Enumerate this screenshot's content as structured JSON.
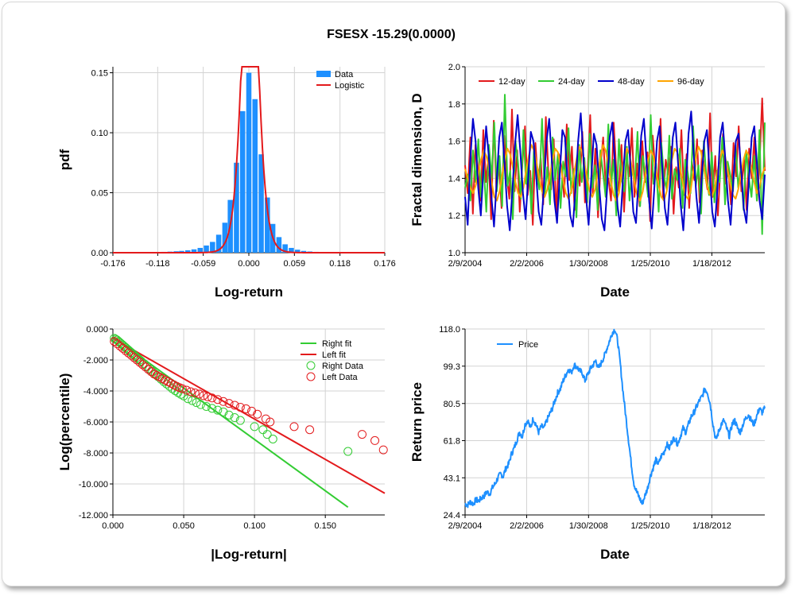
{
  "title": "FSESX -15.29(0.0000)",
  "colors": {
    "blue": "#1e90ff",
    "red": "#e31a1c",
    "green": "#33cc33",
    "navy": "#0000cc",
    "orange": "#ffa500",
    "grid": "#d3d3d3"
  },
  "chart_data": [
    {
      "type": "bar",
      "name": "pdf-histogram",
      "xlabel": "Log-return",
      "ylabel": "pdf",
      "xlim": [
        -0.176,
        0.176
      ],
      "ylim": [
        0,
        0.155
      ],
      "xticks": [
        "-0.176",
        "-0.118",
        "-0.059",
        "0.000",
        "0.059",
        "0.118",
        "0.176"
      ],
      "yticks": [
        "0.00",
        "0.05",
        "0.10",
        "0.15"
      ],
      "legend": [
        "Data",
        "Logistic"
      ],
      "bin_width": 0.0079,
      "bins": [
        -0.166,
        -0.158,
        -0.15,
        -0.142,
        -0.134,
        -0.126,
        -0.118,
        -0.11,
        -0.102,
        -0.094,
        -0.087,
        -0.079,
        -0.071,
        -0.063,
        -0.055,
        -0.047,
        -0.039,
        -0.031,
        -0.024,
        -0.016,
        -0.008,
        0.0,
        0.008,
        0.016,
        0.024,
        0.031,
        0.039,
        0.047,
        0.055,
        0.063,
        0.071,
        0.079,
        0.087,
        0.094,
        0.102,
        0.11,
        0.118,
        0.126,
        0.134,
        0.142,
        0.15
      ],
      "values": [
        0.0003,
        0,
        0.0002,
        0,
        0.0003,
        0.0005,
        0.0004,
        0.0007,
        0.0009,
        0.0012,
        0.0015,
        0.002,
        0.0028,
        0.004,
        0.006,
        0.009,
        0.015,
        0.025,
        0.044,
        0.075,
        0.118,
        0.15,
        0.128,
        0.082,
        0.046,
        0.024,
        0.013,
        0.007,
        0.004,
        0.0025,
        0.0015,
        0.001,
        0.0007,
        0.0005,
        0.0003,
        0.0002,
        0.0002,
        0.0001,
        0,
        0,
        0.0002
      ],
      "fit": {
        "name": "Logistic",
        "mu": 0.0015,
        "s": 0.0065
      }
    },
    {
      "type": "line",
      "name": "fractal-dimension",
      "xlabel": "Date",
      "ylabel": "Fractal dimension, D",
      "xlim": [
        "2004-02-09",
        "2013-10-01"
      ],
      "ylim": [
        1.0,
        2.0
      ],
      "xticks": [
        "2/9/2004",
        "2/2/2006",
        "1/30/2008",
        "1/25/2010",
        "1/18/2012"
      ],
      "yticks": [
        "1.0",
        "1.2",
        "1.4",
        "1.6",
        "1.8",
        "2.0"
      ],
      "series": [
        {
          "name": "12-day",
          "color": "#e31a1c",
          "values": [
            1.47,
            1.32,
            1.62,
            1.21,
            1.58,
            1.45,
            1.28,
            1.66,
            1.38,
            1.52,
            1.18,
            1.71,
            1.35,
            1.49,
            1.24,
            1.63,
            1.41,
            1.29,
            1.77,
            1.33,
            1.55,
            1.22,
            1.48,
            1.68,
            1.31,
            1.44,
            1.15,
            1.59,
            1.37,
            1.51,
            1.26,
            1.73,
            1.42,
            1.34,
            1.61,
            1.2,
            1.53,
            1.46,
            1.3,
            1.69,
            1.39,
            1.57,
            1.23,
            1.5,
            1.36,
            1.65,
            1.27,
            1.43,
            1.74,
            1.32,
            1.56,
            1.19,
            1.47,
            1.62,
            1.35,
            1.4,
            1.28,
            1.7,
            1.45,
            1.33,
            1.58,
            1.22,
            1.52,
            1.41,
            1.67,
            1.3,
            1.48,
            1.25,
            1.6,
            1.38,
            1.54,
            1.17,
            1.63,
            1.44,
            1.36,
            1.72,
            1.29,
            1.5,
            1.42,
            1.57,
            1.21,
            1.46,
            1.35,
            1.66,
            1.31,
            1.53,
            1.24,
            1.49,
            1.39,
            1.61,
            1.27,
            1.55,
            1.43,
            1.34,
            1.75,
            1.3,
            1.52,
            1.2,
            1.47,
            1.64,
            1.37,
            1.45,
            1.26,
            1.59,
            1.41,
            1.68,
            1.33,
            1.51,
            1.23,
            1.56,
            1.4,
            1.62,
            1.28,
            1.48,
            1.83,
            1.44
          ]
        },
        {
          "name": "24-day",
          "color": "#33cc33",
          "values": [
            1.35,
            1.42,
            1.28,
            1.55,
            1.38,
            1.61,
            1.3,
            1.47,
            1.22,
            1.58,
            1.4,
            1.7,
            1.33,
            1.52,
            1.25,
            1.85,
            1.36,
            1.44,
            1.18,
            1.6,
            1.48,
            1.29,
            1.66,
            1.37,
            1.5,
            1.21,
            1.57,
            1.42,
            1.34,
            1.72,
            1.31,
            1.46,
            1.26,
            1.62,
            1.39,
            1.53,
            1.24,
            1.49,
            1.41,
            1.67,
            1.32,
            1.45,
            1.19,
            1.58,
            1.38,
            1.51,
            1.27,
            1.64,
            1.35,
            1.47,
            1.23,
            1.55,
            1.43,
            1.3,
            1.69,
            1.36,
            1.5,
            1.2,
            1.61,
            1.4,
            1.33,
            1.57,
            1.28,
            1.46,
            1.38,
            1.65,
            1.25,
            1.52,
            1.42,
            1.3,
            1.74,
            1.37,
            1.48,
            1.22,
            1.59,
            1.41,
            1.34,
            1.63,
            1.29,
            1.45,
            1.39,
            1.56,
            1.24,
            1.5,
            1.43,
            1.32,
            1.68,
            1.36,
            1.47,
            1.21,
            1.6,
            1.4,
            1.31,
            1.54,
            1.27,
            1.44,
            1.38,
            1.62,
            1.26,
            1.49,
            1.42,
            1.33,
            1.58,
            1.35,
            1.46,
            1.23,
            1.55,
            1.4,
            1.3,
            1.52,
            1.28,
            1.66,
            1.1,
            1.7
          ]
        },
        {
          "name": "48-day",
          "color": "#0000cc",
          "values": [
            1.3,
            1.15,
            1.5,
            1.72,
            1.6,
            1.35,
            1.2,
            1.45,
            1.68,
            1.52,
            1.3,
            1.14,
            1.38,
            1.62,
            1.7,
            1.48,
            1.25,
            1.12,
            1.33,
            1.58,
            1.74,
            1.55,
            1.32,
            1.18,
            1.4,
            1.65,
            1.6,
            1.42,
            1.22,
            1.15,
            1.36,
            1.6,
            1.72,
            1.5,
            1.28,
            1.16,
            1.42,
            1.66,
            1.62,
            1.38,
            1.2,
            1.14,
            1.35,
            1.6,
            1.75,
            1.52,
            1.3,
            1.15,
            1.4,
            1.64,
            1.58,
            1.36,
            1.18,
            1.12,
            1.34,
            1.62,
            1.7,
            1.48,
            1.25,
            1.14,
            1.38,
            1.6,
            1.66,
            1.45,
            1.22,
            1.16,
            1.4,
            1.63,
            1.72,
            1.5,
            1.28,
            1.13,
            1.35,
            1.6,
            1.68,
            1.46,
            1.24,
            1.15,
            1.38,
            1.62,
            1.7,
            1.48,
            1.26,
            1.12,
            1.36,
            1.64,
            1.76,
            1.52,
            1.3,
            1.16,
            1.4,
            1.6,
            1.66,
            1.44,
            1.22,
            1.14,
            1.35,
            1.62,
            1.7,
            1.5,
            1.28,
            1.15,
            1.38,
            1.6,
            1.64,
            1.45,
            1.24,
            1.16,
            1.4,
            1.62,
            1.68,
            1.48,
            1.28,
            1.18,
            1.42
          ]
        },
        {
          "name": "96-day",
          "color": "#ffa500",
          "values": [
            1.45,
            1.4,
            1.35,
            1.32,
            1.36,
            1.42,
            1.5,
            1.55,
            1.52,
            1.46,
            1.38,
            1.3,
            1.28,
            1.33,
            1.42,
            1.5,
            1.56,
            1.53,
            1.46,
            1.38,
            1.32,
            1.3,
            1.35,
            1.44,
            1.52,
            1.58,
            1.55,
            1.48,
            1.4,
            1.33,
            1.3,
            1.34,
            1.42,
            1.5,
            1.56,
            1.54,
            1.47,
            1.39,
            1.32,
            1.29,
            1.33,
            1.42,
            1.5,
            1.57,
            1.55,
            1.48,
            1.4,
            1.33,
            1.3,
            1.34,
            1.43,
            1.51,
            1.58,
            1.55,
            1.47,
            1.38,
            1.31,
            1.28,
            1.32,
            1.42,
            1.5,
            1.56,
            1.53,
            1.45,
            1.37,
            1.3,
            1.28,
            1.33,
            1.42,
            1.5,
            1.55,
            1.52,
            1.44,
            1.36,
            1.3,
            1.28,
            1.33,
            1.42,
            1.5,
            1.56,
            1.54,
            1.46,
            1.38,
            1.31,
            1.29,
            1.33,
            1.43,
            1.51,
            1.57,
            1.54,
            1.46,
            1.38,
            1.32,
            1.3,
            1.34,
            1.42,
            1.5,
            1.55,
            1.52,
            1.44,
            1.37,
            1.31,
            1.29,
            1.34,
            1.42,
            1.5,
            1.55,
            1.52,
            1.45,
            1.38,
            1.32,
            1.35,
            1.42,
            1.46
          ]
        }
      ]
    },
    {
      "type": "scatter",
      "name": "tail-fit",
      "xlabel": "|Log-return|",
      "ylabel": "Log(percentile)",
      "xlim": [
        0,
        0.192
      ],
      "ylim": [
        -12,
        0
      ],
      "xticks": [
        "0.000",
        "0.050",
        "0.100",
        "0.150"
      ],
      "yticks": [
        "0.000",
        "-2.000",
        "-4.000",
        "-6.000",
        "-8.000",
        "-10.000",
        "-12.000"
      ],
      "legend": [
        "Right fit",
        "Left fit",
        "Right Data",
        "Left Data"
      ],
      "right_fit": {
        "x": [
          0,
          0.166
        ],
        "y": [
          -0.5,
          -11.5
        ]
      },
      "left_fit": {
        "x": [
          0,
          0.192
        ],
        "y": [
          -0.6,
          -10.6
        ]
      },
      "right_data": {
        "x": [
          0.001,
          0.002,
          0.003,
          0.004,
          0.005,
          0.006,
          0.007,
          0.008,
          0.009,
          0.01,
          0.011,
          0.012,
          0.013,
          0.014,
          0.015,
          0.016,
          0.017,
          0.018,
          0.019,
          0.02,
          0.022,
          0.024,
          0.026,
          0.028,
          0.03,
          0.032,
          0.034,
          0.036,
          0.038,
          0.04,
          0.042,
          0.044,
          0.046,
          0.048,
          0.05,
          0.053,
          0.056,
          0.059,
          0.062,
          0.066,
          0.07,
          0.074,
          0.078,
          0.082,
          0.086,
          0.09,
          0.1,
          0.106,
          0.109,
          0.113,
          0.166
        ],
        "y": [
          -0.6,
          -0.66,
          -0.72,
          -0.8,
          -0.88,
          -0.96,
          -1.04,
          -1.12,
          -1.2,
          -1.28,
          -1.36,
          -1.44,
          -1.52,
          -1.6,
          -1.68,
          -1.76,
          -1.84,
          -1.92,
          -2.0,
          -2.08,
          -2.25,
          -2.42,
          -2.58,
          -2.75,
          -2.92,
          -3.08,
          -3.24,
          -3.4,
          -3.55,
          -3.7,
          -3.85,
          -3.98,
          -4.1,
          -4.22,
          -4.32,
          -4.5,
          -4.62,
          -4.75,
          -4.88,
          -5.0,
          -5.12,
          -5.24,
          -5.35,
          -5.55,
          -5.72,
          -5.9,
          -6.3,
          -6.5,
          -6.8,
          -7.1,
          -7.9
        ]
      },
      "left_data": {
        "x": [
          0.001,
          0.003,
          0.005,
          0.007,
          0.009,
          0.011,
          0.013,
          0.015,
          0.017,
          0.019,
          0.021,
          0.023,
          0.025,
          0.027,
          0.029,
          0.031,
          0.033,
          0.035,
          0.037,
          0.039,
          0.041,
          0.043,
          0.045,
          0.047,
          0.049,
          0.052,
          0.055,
          0.058,
          0.061,
          0.064,
          0.067,
          0.07,
          0.074,
          0.078,
          0.082,
          0.086,
          0.09,
          0.094,
          0.098,
          0.102,
          0.108,
          0.111,
          0.128,
          0.139,
          0.176,
          0.185,
          0.191
        ],
        "y": [
          -0.8,
          -0.95,
          -1.1,
          -1.25,
          -1.4,
          -1.55,
          -1.7,
          -1.85,
          -2.0,
          -2.15,
          -2.3,
          -2.45,
          -2.6,
          -2.75,
          -2.9,
          -3.0,
          -3.1,
          -3.2,
          -3.3,
          -3.4,
          -3.5,
          -3.6,
          -3.7,
          -3.78,
          -3.85,
          -3.95,
          -4.05,
          -4.12,
          -4.2,
          -4.3,
          -4.38,
          -4.45,
          -4.55,
          -4.68,
          -4.8,
          -4.92,
          -5.05,
          -5.15,
          -5.3,
          -5.5,
          -5.8,
          -6.0,
          -6.3,
          -6.5,
          -6.8,
          -7.2,
          -7.8
        ]
      }
    },
    {
      "type": "line",
      "name": "return-price",
      "xlabel": "Date",
      "ylabel": "Return price",
      "xlim": [
        "2004-02-09",
        "2013-10-01"
      ],
      "ylim": [
        24.4,
        118.0
      ],
      "xticks": [
        "2/9/2004",
        "2/2/2006",
        "1/30/2008",
        "1/25/2010",
        "1/18/2012"
      ],
      "yticks": [
        "24.4",
        "43.1",
        "61.8",
        "80.5",
        "99.3",
        "118.0"
      ],
      "series": [
        {
          "name": "Price",
          "color": "#1e90ff",
          "values": [
            30,
            29.5,
            31,
            30,
            32,
            31.5,
            33,
            34,
            36,
            35,
            38,
            40,
            43,
            45,
            44,
            48,
            50,
            55,
            58,
            62,
            66,
            64,
            70,
            72,
            68,
            73,
            70,
            66,
            69,
            68,
            72,
            75,
            78,
            82,
            86,
            88,
            92,
            95,
            98,
            96,
            100,
            99,
            97,
            96,
            92,
            95,
            98,
            100,
            102,
            98,
            101,
            104,
            108,
            112,
            116,
            118,
            112,
            100,
            86,
            74,
            62,
            50,
            40,
            36,
            33,
            30,
            34,
            38,
            44,
            48,
            52,
            50,
            54,
            56,
            60,
            58,
            62,
            63,
            60,
            64,
            68,
            66,
            70,
            74,
            76,
            79,
            82,
            84,
            88,
            86,
            80,
            70,
            62,
            66,
            70,
            72,
            68,
            64,
            70,
            72,
            68,
            66,
            70,
            73,
            75,
            72,
            70,
            74,
            78,
            76,
            78
          ]
        }
      ]
    }
  ]
}
